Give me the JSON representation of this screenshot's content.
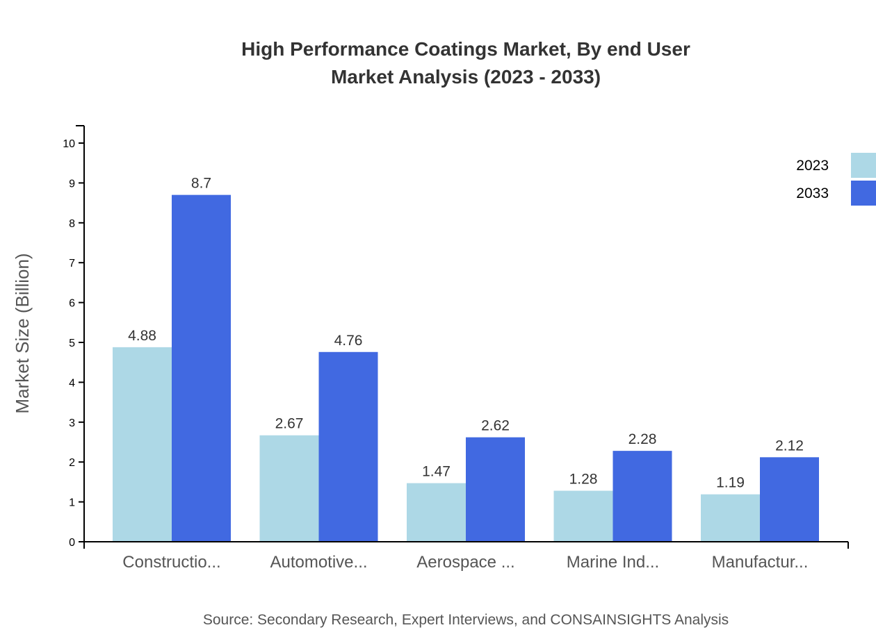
{
  "chart_data": {
    "type": "bar",
    "title": [
      "High Performance Coatings Market, By end User",
      "Market Analysis (2023 - 2033)"
    ],
    "categories": [
      "Constructio...",
      "Automotive...",
      "Aerospace ...",
      "Marine Ind...",
      "Manufactur..."
    ],
    "series": [
      {
        "name": "2023",
        "color": "#ADD8E6",
        "values": [
          4.88,
          2.67,
          1.47,
          1.28,
          1.19
        ]
      },
      {
        "name": "2033",
        "color": "#4169E1",
        "values": [
          8.7,
          4.76,
          2.62,
          2.28,
          2.12
        ]
      }
    ],
    "xlabel": "",
    "ylabel": "Market Size (Billion)",
    "ylim": [
      0,
      10.4
    ],
    "yticks": [
      0,
      1,
      2,
      3,
      4,
      5,
      6,
      7,
      8,
      9,
      10
    ],
    "grid": false,
    "legend": "top-right",
    "source": "Source: Secondary Research, Expert Interviews, and CONSAINSIGHTS Analysis"
  }
}
